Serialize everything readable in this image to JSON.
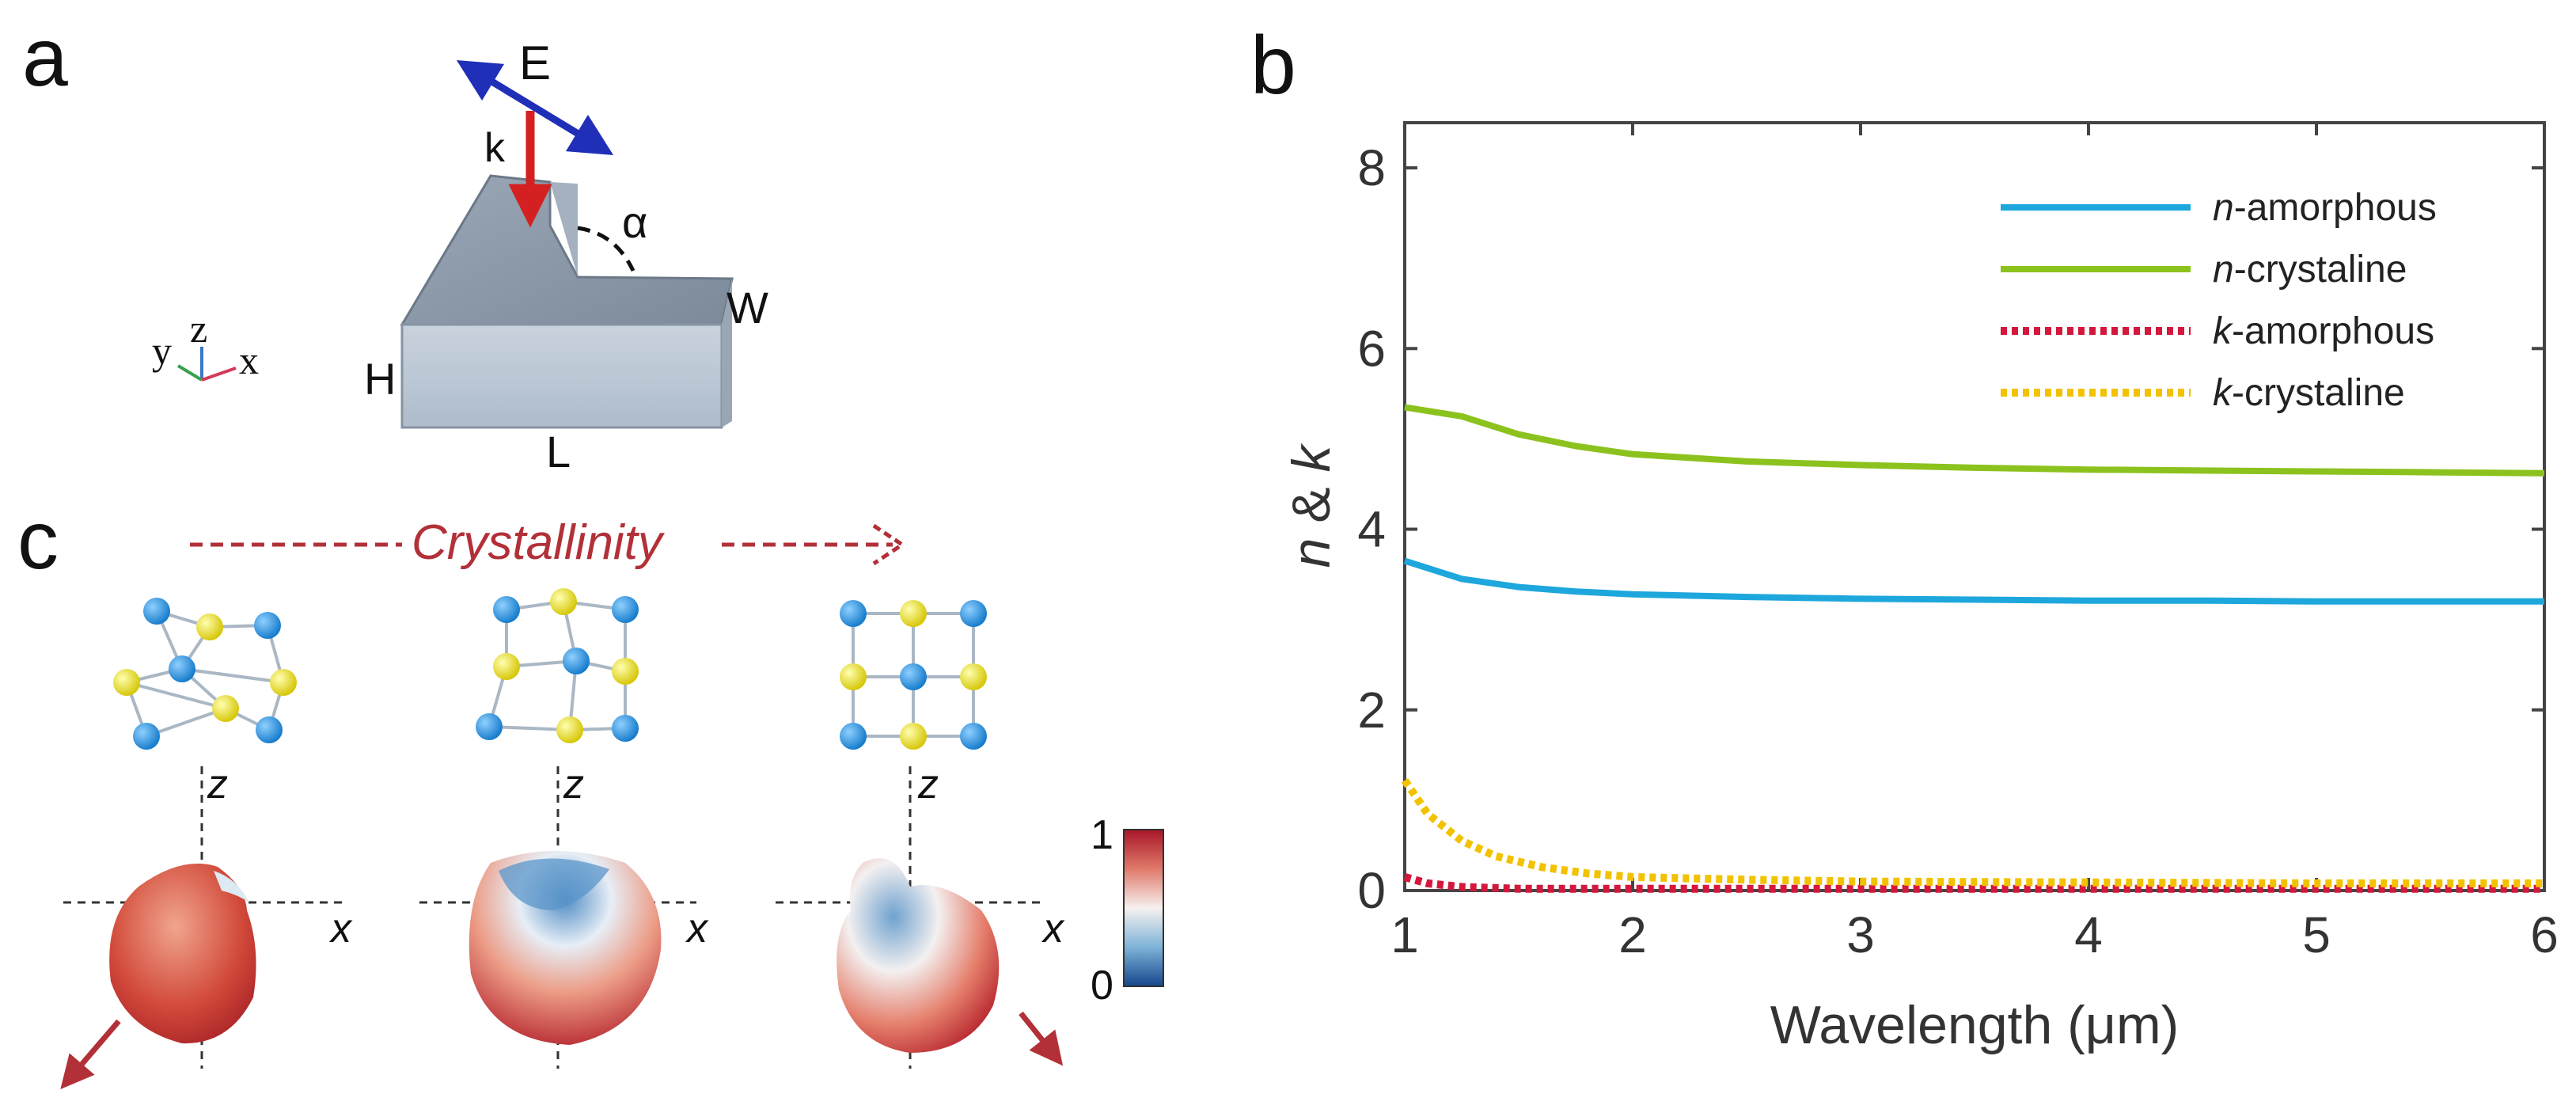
{
  "panels": {
    "a": {
      "label": "a",
      "E": "E",
      "k": "k",
      "alpha": "α",
      "W": "W",
      "H": "H",
      "L": "L",
      "axes": {
        "y": "y",
        "z": "z",
        "x": "x"
      }
    },
    "b": {
      "label": "b"
    },
    "c": {
      "label": "c",
      "crystallinity": "Crystallinity",
      "z1": "z",
      "x1": "x",
      "z2": "z",
      "x2": "x",
      "z3": "z",
      "x3": "x",
      "colorbar_max": "1",
      "colorbar_min": "0"
    }
  },
  "colors": {
    "n_amorphous": "#1ea7dc",
    "n_crystaline": "#8cc21e",
    "k_amorphous": "#d4183d",
    "k_crystaline": "#f2c200",
    "arrow_E": "#1f2fb8",
    "arrow_k": "#d42020",
    "crystallinity": "#b23038",
    "blue_atom": "#1a8fe0",
    "yellow_atom": "#f0e000"
  },
  "chart_data": {
    "type": "line",
    "title": "",
    "xlabel": "Wavelength (μm)",
    "ylabel_italic_n": "n",
    "ylabel_amp": " & ",
    "ylabel_italic_k": "k",
    "xlim": [
      1,
      6
    ],
    "ylim": [
      0,
      8.5
    ],
    "xticks": [
      "1",
      "2",
      "3",
      "4",
      "5",
      "6"
    ],
    "yticks": [
      "0",
      "2",
      "4",
      "6",
      "8"
    ],
    "grid": false,
    "legend_position": "top-right",
    "series": [
      {
        "name": "n-amorphous",
        "prefix": "n",
        "suffix": "-amorphous",
        "style": "solid",
        "color": "#1ea7dc",
        "x": [
          1.0,
          1.25,
          1.5,
          1.75,
          2.0,
          2.5,
          3.0,
          3.5,
          4.0,
          4.5,
          5.0,
          5.5,
          6.0
        ],
        "y": [
          3.65,
          3.45,
          3.36,
          3.31,
          3.28,
          3.25,
          3.23,
          3.22,
          3.21,
          3.21,
          3.2,
          3.2,
          3.2
        ]
      },
      {
        "name": "n-crystaline",
        "prefix": "n",
        "suffix": "-crystaline",
        "style": "solid",
        "color": "#8cc21e",
        "x": [
          1.0,
          1.25,
          1.5,
          1.75,
          2.0,
          2.5,
          3.0,
          3.5,
          4.0,
          4.5,
          5.0,
          5.5,
          6.0
        ],
        "y": [
          5.35,
          5.25,
          5.05,
          4.92,
          4.83,
          4.75,
          4.71,
          4.68,
          4.66,
          4.65,
          4.64,
          4.63,
          4.62
        ]
      },
      {
        "name": "k-amorphous",
        "prefix": "k",
        "suffix": "-amorphous",
        "style": "dotted",
        "color": "#d4183d",
        "x": [
          1.0,
          1.1,
          1.25,
          1.5,
          2.0,
          3.0,
          4.0,
          5.0,
          6.0
        ],
        "y": [
          0.15,
          0.08,
          0.04,
          0.02,
          0.02,
          0.02,
          0.02,
          0.02,
          0.02
        ]
      },
      {
        "name": "k-crystaline",
        "prefix": "k",
        "suffix": "-crystaline",
        "style": "dotted",
        "color": "#f2c200",
        "x": [
          1.0,
          1.1,
          1.25,
          1.4,
          1.6,
          1.8,
          2.0,
          2.5,
          3.0,
          4.0,
          5.0,
          6.0
        ],
        "y": [
          1.22,
          0.85,
          0.55,
          0.38,
          0.26,
          0.19,
          0.15,
          0.12,
          0.1,
          0.09,
          0.08,
          0.08
        ]
      }
    ]
  }
}
